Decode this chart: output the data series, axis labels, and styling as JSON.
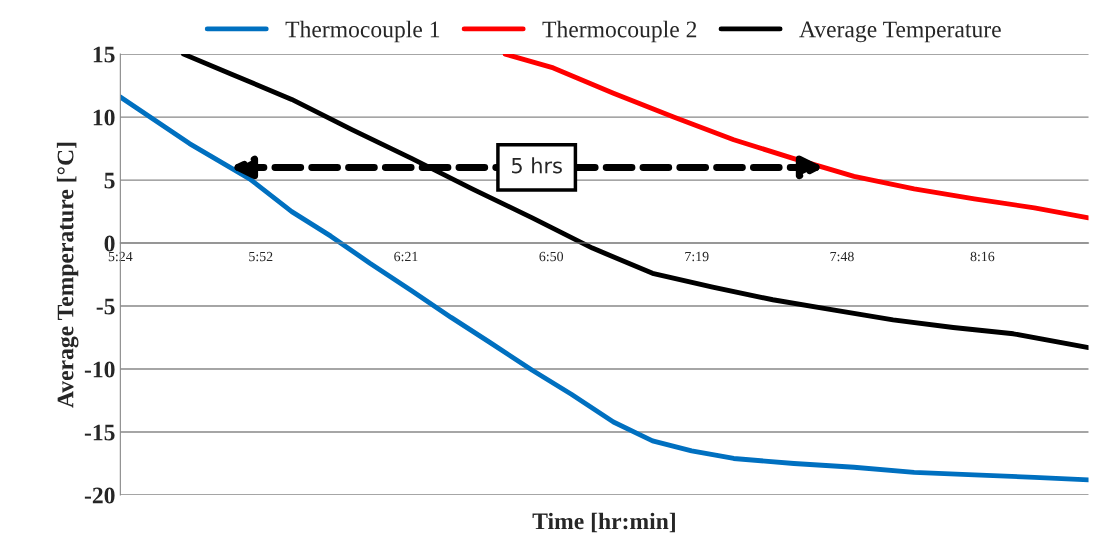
{
  "chart_data": {
    "type": "line",
    "xlabel": "Time [hr:min]",
    "ylabel": "Average Temperature [°C]",
    "xlim": [
      5.4,
      8.62
    ],
    "xticks": [
      {
        "value": 5.4,
        "label": "5:24"
      },
      {
        "value": 5.867,
        "label": "5:52"
      },
      {
        "value": 6.35,
        "label": "6:21"
      },
      {
        "value": 6.833,
        "label": "6:50"
      },
      {
        "value": 7.317,
        "label": "7:19"
      },
      {
        "value": 7.8,
        "label": "7:48"
      },
      {
        "value": 8.267,
        "label": "8:16"
      }
    ],
    "ylim": [
      -20,
      15
    ],
    "yticks": [
      -20,
      -15,
      -10,
      -5,
      0,
      5,
      10,
      15
    ],
    "grid": "y",
    "legend": "top",
    "line_style": "solid",
    "marker": "none",
    "series": [
      {
        "name": "Thermocouple 1",
        "color": "#0070c0",
        "x": [
          5.4,
          5.63,
          5.83,
          5.97,
          6.1,
          6.23,
          6.37,
          6.5,
          6.63,
          6.77,
          6.9,
          7.04,
          7.17,
          7.3,
          7.44,
          7.64,
          7.84,
          8.04,
          8.24,
          8.44,
          8.62
        ],
        "values": [
          11.6,
          7.9,
          5.1,
          2.5,
          0.55,
          -1.6,
          -3.8,
          -5.9,
          -7.9,
          -10.1,
          -12,
          -14.2,
          -15.7,
          -16.5,
          -17.1,
          -17.5,
          -17.8,
          -18.2,
          -18.4,
          -18.6,
          -18.8
        ]
      },
      {
        "name": "Thermocouple 2",
        "color": "#ff0000",
        "x": [
          6.68,
          6.84,
          7.04,
          7.24,
          7.44,
          7.64,
          7.84,
          8.04,
          8.24,
          8.44,
          8.62
        ],
        "values": [
          15,
          13.9,
          11.9,
          10,
          8.2,
          6.7,
          5.3,
          4.3,
          3.5,
          2.8,
          2
        ]
      },
      {
        "name": "Average Temperature",
        "color": "#000000",
        "x": [
          5.61,
          5.77,
          5.97,
          6.17,
          6.37,
          6.57,
          6.77,
          6.97,
          7.17,
          7.37,
          7.57,
          7.77,
          7.97,
          8.17,
          8.37,
          8.62
        ],
        "values": [
          15,
          13.4,
          11.4,
          9,
          6.7,
          4.3,
          2,
          -0.4,
          -2.4,
          -3.5,
          -4.5,
          -5.3,
          -6.1,
          -6.7,
          -7.2,
          -8.3
        ]
      }
    ],
    "annotations": [
      "5 hrs"
    ]
  }
}
